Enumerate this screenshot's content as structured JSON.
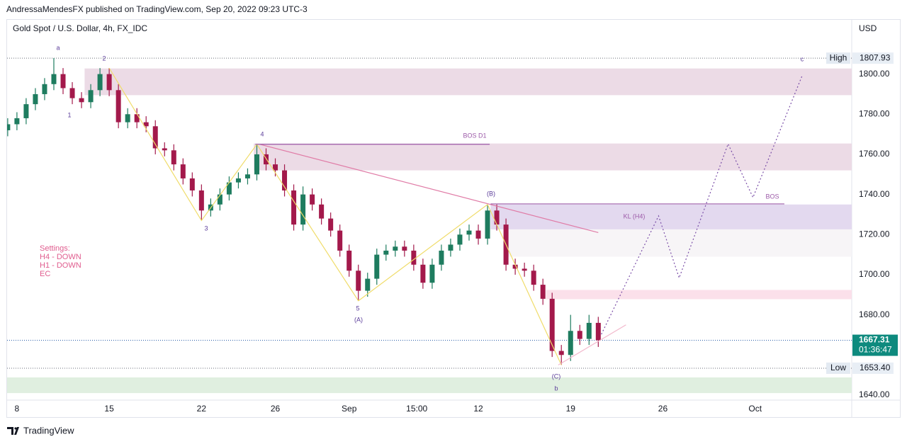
{
  "header": {
    "text": "AndressaMendesFX published on TradingView.com, Sep 20, 2022 09:23 UTC-3"
  },
  "footer": {
    "brand": "TradingView"
  },
  "chart_data": {
    "type": "candlestick",
    "title": "Gold Spot / U.S. Dollar, 4h, FX_IDC",
    "currency": "USD",
    "up_color": "#1e7c5f",
    "down_color": "#a3194b",
    "x": [
      -3,
      0,
      3,
      6,
      9,
      12,
      15,
      18,
      21,
      24,
      27,
      30,
      33,
      36,
      39,
      42,
      45,
      48,
      51,
      54,
      57,
      60,
      63,
      66,
      69,
      72,
      75,
      78,
      81,
      84,
      87,
      90,
      93,
      96,
      99,
      102,
      105,
      108,
      111,
      114,
      117,
      120,
      123,
      126,
      129,
      132,
      135,
      138,
      141,
      144,
      147,
      150,
      153,
      156,
      159,
      162,
      165,
      168,
      171,
      174,
      177,
      180,
      183,
      186,
      189
    ],
    "open": [
      1772,
      1775,
      1778,
      1785,
      1790,
      1795,
      1800,
      1793,
      1788,
      1786,
      1792,
      1800,
      1792,
      1776,
      1780,
      1776,
      1774,
      1763,
      1762,
      1755,
      1748,
      1742,
      1732,
      1735,
      1740,
      1746,
      1748,
      1750,
      1760,
      1755,
      1752,
      1742,
      1725,
      1740,
      1735,
      1728,
      1722,
      1712,
      1702,
      1692,
      1698,
      1710,
      1712,
      1714,
      1712,
      1705,
      1696,
      1705,
      1712,
      1715,
      1720,
      1722,
      1718,
      1732,
      1725,
      1705,
      1703,
      1702,
      1695,
      1688,
      1662,
      1660,
      1672,
      1668,
      1676
    ],
    "high": [
      1778,
      1781,
      1788,
      1793,
      1798,
      1808,
      1803,
      1796,
      1791,
      1795,
      1803,
      1803,
      1795,
      1783,
      1783,
      1779,
      1777,
      1766,
      1765,
      1758,
      1751,
      1745,
      1738,
      1743,
      1749,
      1751,
      1753,
      1765,
      1763,
      1758,
      1755,
      1745,
      1744,
      1743,
      1738,
      1731,
      1725,
      1715,
      1705,
      1701,
      1713,
      1715,
      1717,
      1717,
      1715,
      1708,
      1708,
      1715,
      1718,
      1723,
      1725,
      1725,
      1735,
      1735,
      1728,
      1708,
      1706,
      1705,
      1698,
      1691,
      1665,
      1680,
      1675,
      1680,
      1679
    ],
    "low": [
      1769,
      1772,
      1775,
      1782,
      1787,
      1792,
      1790,
      1785,
      1783,
      1783,
      1789,
      1789,
      1773,
      1773,
      1773,
      1771,
      1760,
      1759,
      1752,
      1745,
      1739,
      1727,
      1729,
      1732,
      1737,
      1743,
      1745,
      1747,
      1752,
      1749,
      1739,
      1722,
      1722,
      1732,
      1725,
      1719,
      1709,
      1699,
      1687,
      1689,
      1695,
      1707,
      1709,
      1709,
      1702,
      1693,
      1693,
      1702,
      1709,
      1712,
      1717,
      1715,
      1715,
      1722,
      1702,
      1700,
      1699,
      1692,
      1685,
      1659,
      1655,
      1657,
      1665,
      1665,
      1664
    ],
    "close": [
      1775,
      1778,
      1785,
      1790,
      1795,
      1800,
      1793,
      1788,
      1786,
      1792,
      1800,
      1792,
      1776,
      1780,
      1776,
      1774,
      1763,
      1762,
      1755,
      1748,
      1742,
      1732,
      1735,
      1740,
      1746,
      1748,
      1750,
      1760,
      1755,
      1752,
      1742,
      1725,
      1740,
      1735,
      1728,
      1722,
      1712,
      1702,
      1692,
      1698,
      1710,
      1712,
      1714,
      1712,
      1705,
      1696,
      1705,
      1712,
      1715,
      1720,
      1722,
      1718,
      1732,
      1725,
      1705,
      1703,
      1702,
      1695,
      1688,
      1662,
      1660,
      1672,
      1668,
      1676,
      1667.31
    ],
    "xlim": [
      -3.2,
      271.4
    ],
    "xticks": [
      {
        "value": 0,
        "label": "8"
      },
      {
        "value": 30,
        "label": "15"
      },
      {
        "value": 60,
        "label": "22"
      },
      {
        "value": 84,
        "label": "26"
      },
      {
        "value": 108,
        "label": "Sep"
      },
      {
        "value": 130,
        "label": "15:00"
      },
      {
        "value": 150,
        "label": "12"
      },
      {
        "value": 180,
        "label": "19"
      },
      {
        "value": 210,
        "label": "26"
      },
      {
        "value": 240,
        "label": "Oct"
      }
    ],
    "ylim": [
      1637.5,
      1827.4
    ],
    "yticks": [
      {
        "value": 1640,
        "label": "1640.00"
      },
      {
        "value": 1680,
        "label": "1680.00"
      },
      {
        "value": 1700,
        "label": "1700.00"
      },
      {
        "value": 1720,
        "label": "1720.00"
      },
      {
        "value": 1740,
        "label": "1740.00"
      },
      {
        "value": 1760,
        "label": "1760.00"
      },
      {
        "value": 1780,
        "label": "1780.00"
      },
      {
        "value": 1800,
        "label": "1800.00"
      }
    ],
    "price_lines": [
      {
        "name": "High",
        "value": 1807.93
      },
      {
        "name": "Low",
        "value": 1653.4,
        "value_label": "1653.40"
      }
    ],
    "last_price": {
      "value": 1667.31,
      "countdown": "01:36:47"
    },
    "zones": [
      {
        "x": [
          22,
          271.4
        ],
        "y": [
          1789.5,
          1802.8
        ],
        "color": "#ecdbe6"
      },
      {
        "x": [
          77,
          271.4
        ],
        "y": [
          1752,
          1765.4
        ],
        "color": "#ecdbe6"
      },
      {
        "x": [
          154,
          271.4
        ],
        "y": [
          1722.6,
          1735
        ],
        "color": "#e3d9ef"
      },
      {
        "x": [
          159,
          271.4
        ],
        "y": [
          1709,
          1722.6
        ],
        "color": "#f7f5f7"
      },
      {
        "x": [
          172,
          271.4
        ],
        "y": [
          1687.8,
          1692.4
        ],
        "color": "#fbe0ea"
      },
      {
        "x": [
          -3.2,
          271.4
        ],
        "y": [
          1641,
          1648.8
        ],
        "color": "#e0efe0"
      }
    ],
    "lines": [
      {
        "x": [
          30,
          60,
          78,
          111,
          153,
          177
        ],
        "y": [
          1803,
          1727,
          1765,
          1687,
          1735,
          1655
        ],
        "color": "#f0dc6a",
        "dotted": false
      },
      {
        "x": [
          79,
          189
        ],
        "y": [
          1765,
          1721
        ],
        "color": "#e07ba6",
        "dotted": false
      },
      {
        "x": [
          176,
          198
        ],
        "y": [
          1655,
          1675
        ],
        "color": "#f2b8cc",
        "dotted": false
      },
      {
        "x": [
          77.5,
          153.7
        ],
        "y": [
          1765,
          1765
        ],
        "color": "#9c5aa8",
        "dotted": false
      },
      {
        "x": [
          154,
          249.5
        ],
        "y": [
          1735.3,
          1735.3
        ],
        "color": "#9c5aa8",
        "dotted": false
      },
      {
        "x": [
          190,
          208.6,
          215.3,
          231.2,
          239.3,
          255.3
        ],
        "y": [
          1670.3,
          1729.3,
          1698.4,
          1765.2,
          1738.5,
          1799.3
        ],
        "color": "#7b4fa8",
        "dotted": true
      }
    ],
    "annotations": [
      "a",
      "1",
      "2",
      "3",
      "4",
      "5",
      "(A)",
      "(B)",
      "(C)",
      "b",
      "c",
      "BOS D1",
      "KL (H4)",
      "BOS"
    ],
    "settings": [
      "Settings:",
      "H4 - DOWN",
      "H1 - DOWN",
      "EC"
    ]
  }
}
